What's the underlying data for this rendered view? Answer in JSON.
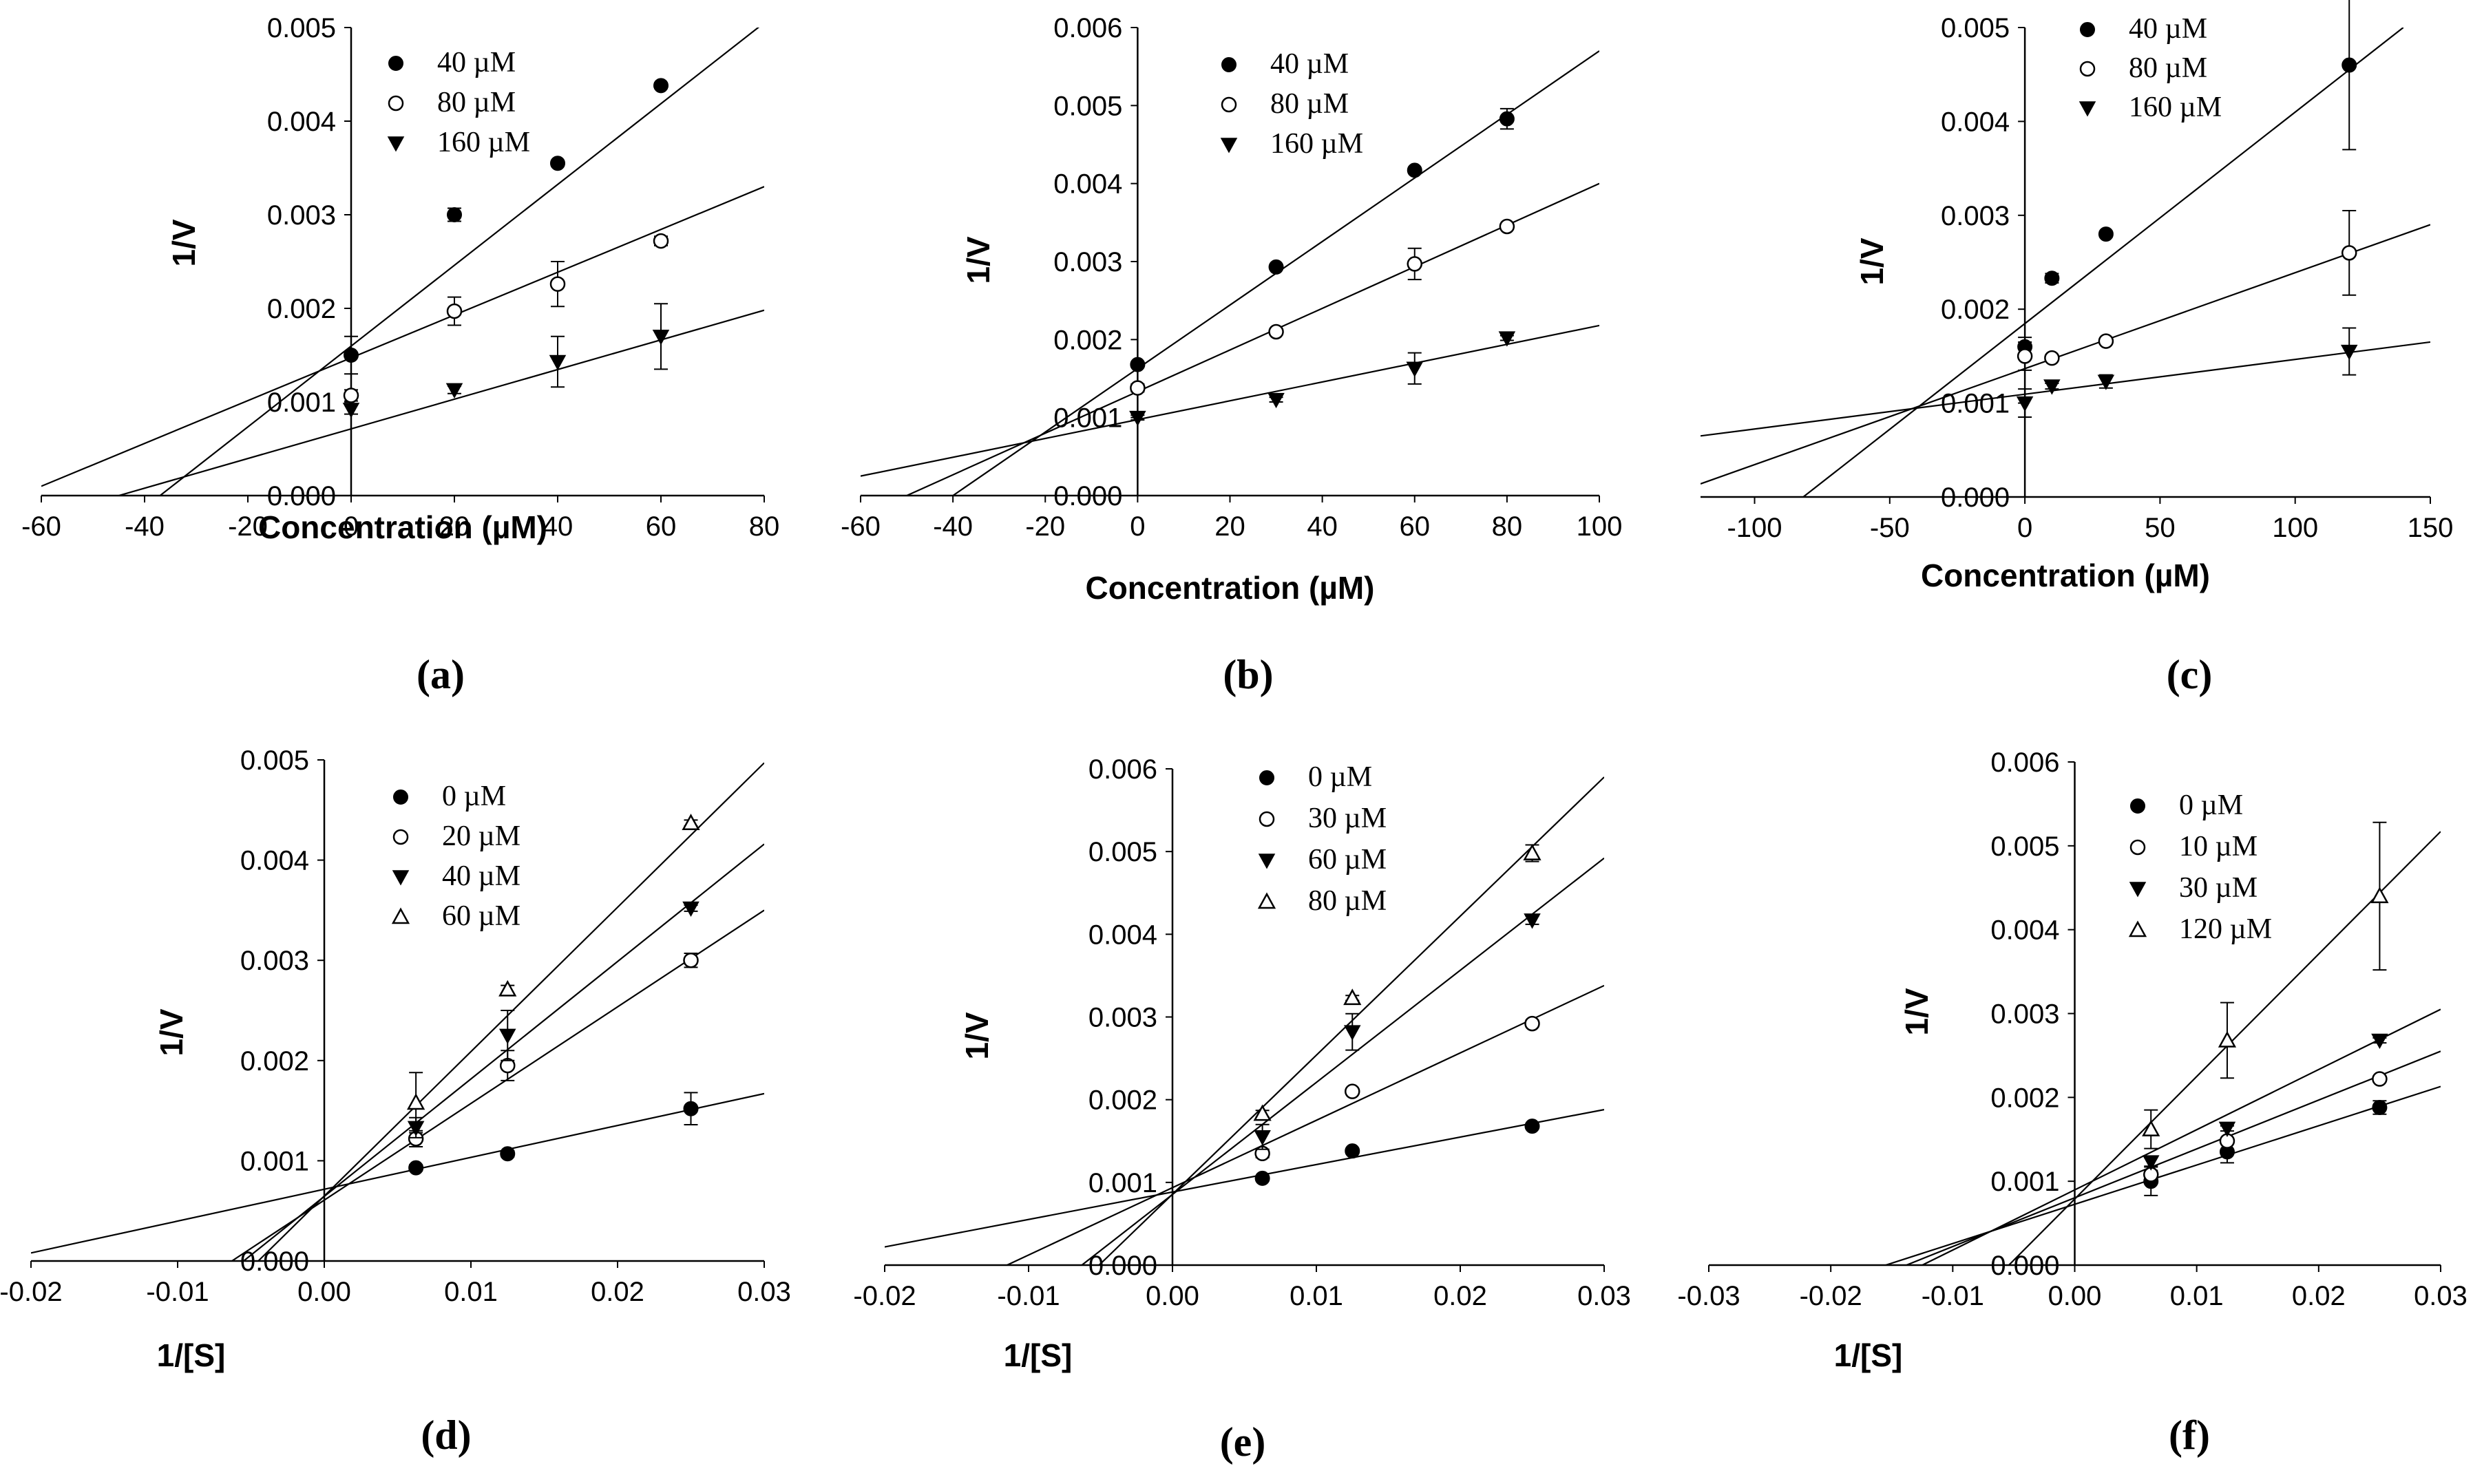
{
  "chart_data": [
    {
      "panel": "(a)",
      "type": "scatter",
      "xlabel": "Concentration (µM)",
      "ylabel": "1/V",
      "xlim": [
        -60,
        80
      ],
      "ylim": [
        0,
        0.005
      ],
      "xticks": [
        -60,
        -40,
        -20,
        0,
        20,
        40,
        60,
        80
      ],
      "xtick_labels": [
        "-60",
        "-40",
        "-20",
        "0",
        "20",
        "40",
        "60",
        "80"
      ],
      "yticks": [
        0,
        0.001,
        0.002,
        0.003,
        0.004,
        0.005
      ],
      "ytick_labels": [
        "0.000",
        "0.001",
        "0.002",
        "0.003",
        "0.004",
        "0.005"
      ],
      "legend": "top-left",
      "series": [
        {
          "name": "40 µM",
          "marker": "filled-circle",
          "x": [
            0,
            20,
            40,
            60
          ],
          "y": [
            0.0015,
            0.003,
            0.00355,
            0.00438
          ],
          "err": [
            0.0002,
            7e-05,
            3e-05,
            3e-05
          ],
          "fit": {
            "x0": -37,
            "y0": 0,
            "x1": 80,
            "y1": 0.00505
          }
        },
        {
          "name": "80 µM",
          "marker": "open-circle",
          "x": [
            0,
            20,
            40,
            60
          ],
          "y": [
            0.00107,
            0.00197,
            0.00226,
            0.00272
          ],
          "err": [
            6e-05,
            0.00015,
            0.00024,
            5e-05
          ],
          "fit": {
            "x0": -60,
            "y0": 0.0001,
            "x1": 80,
            "y1": 0.0033
          }
        },
        {
          "name": "160 µM",
          "marker": "filled-triangle-down",
          "x": [
            0,
            20,
            40,
            60
          ],
          "y": [
            0.00092,
            0.00113,
            0.00143,
            0.0017
          ],
          "err": [
            5e-05,
            4e-05,
            0.00027,
            0.00035
          ],
          "fit": {
            "x0": -45,
            "y0": 0,
            "x1": 80,
            "y1": 0.00198
          }
        }
      ]
    },
    {
      "panel": "(b)",
      "type": "scatter",
      "xlabel": "Concentration (µM)",
      "ylabel": "1/V",
      "xlim": [
        -60,
        100
      ],
      "ylim": [
        0,
        0.006
      ],
      "xticks": [
        -60,
        -40,
        -20,
        0,
        20,
        40,
        60,
        80,
        100
      ],
      "xtick_labels": [
        "-60",
        "-40",
        "-20",
        "0",
        "20",
        "40",
        "60",
        "80",
        "100"
      ],
      "yticks": [
        0,
        0.001,
        0.002,
        0.003,
        0.004,
        0.005,
        0.006
      ],
      "ytick_labels": [
        "0.000",
        "0.001",
        "0.002",
        "0.003",
        "0.004",
        "0.005",
        "0.006"
      ],
      "legend": "top-center",
      "series": [
        {
          "name": "40 µM",
          "marker": "filled-circle",
          "x": [
            0,
            30,
            60,
            80
          ],
          "y": [
            0.00168,
            0.00293,
            0.00417,
            0.00483
          ],
          "err": [
            3e-05,
            3e-05,
            3e-05,
            0.00013
          ],
          "fit": {
            "x0": -40,
            "y0": 0,
            "x1": 100,
            "y1": 0.0057
          }
        },
        {
          "name": "80 µM",
          "marker": "open-circle",
          "x": [
            0,
            30,
            60,
            80
          ],
          "y": [
            0.00138,
            0.0021,
            0.00297,
            0.00345
          ],
          "err": [
            5e-05,
            3e-05,
            0.0002,
            3e-05
          ],
          "fit": {
            "x0": -50,
            "y0": 0,
            "x1": 100,
            "y1": 0.004
          }
        },
        {
          "name": "160 µM",
          "marker": "filled-triangle-down",
          "x": [
            0,
            30,
            60,
            80
          ],
          "y": [
            0.001,
            0.00123,
            0.00163,
            0.00202
          ],
          "err": [
            3e-05,
            3e-05,
            0.0002,
            3e-05
          ],
          "fit": {
            "x0": -60,
            "y0": 0.00025,
            "x1": 100,
            "y1": 0.00218
          }
        }
      ]
    },
    {
      "panel": "(c)",
      "type": "scatter",
      "xlabel": "Concentration (µM)",
      "ylabel": "1/V",
      "xlim": [
        -120,
        150
      ],
      "ylim": [
        0,
        0.005
      ],
      "xticks": [
        -100,
        -50,
        0,
        50,
        100,
        150
      ],
      "xtick_labels": [
        "-100",
        "-50",
        "0",
        "50",
        "100",
        "150"
      ],
      "yticks": [
        0,
        0.001,
        0.002,
        0.003,
        0.004,
        0.005
      ],
      "ytick_labels": [
        "0.000",
        "0.001",
        "0.002",
        "0.003",
        "0.004",
        "0.005"
      ],
      "legend": "top-center",
      "series": [
        {
          "name": "40 µM",
          "marker": "filled-circle",
          "x": [
            0,
            10,
            30,
            120
          ],
          "y": [
            0.0016,
            0.00233,
            0.0028,
            0.0046
          ],
          "err": [
            0.0001,
            5e-05,
            3e-05,
            0.0009
          ],
          "fit": {
            "x0": -82,
            "y0": 0,
            "x1": 140,
            "y1": 0.005
          }
        },
        {
          "name": "80 µM",
          "marker": "open-circle",
          "x": [
            0,
            10,
            30,
            120
          ],
          "y": [
            0.0015,
            0.00148,
            0.00166,
            0.0026
          ],
          "err": [
            0.00015,
            3e-05,
            3e-05,
            0.00045
          ],
          "fit": {
            "x0": -120,
            "y0": 0.00014,
            "x1": 150,
            "y1": 0.0029
          }
        },
        {
          "name": "160 µM",
          "marker": "filled-triangle-down",
          "x": [
            0,
            10,
            30,
            120
          ],
          "y": [
            0.001,
            0.00118,
            0.00123,
            0.00155
          ],
          "err": [
            0.00015,
            3e-05,
            7e-05,
            0.00025
          ],
          "fit": {
            "x0": -120,
            "y0": 0.00065,
            "x1": 150,
            "y1": 0.00165
          }
        }
      ]
    },
    {
      "panel": "(d)",
      "type": "scatter",
      "xlabel": "1/[S]",
      "ylabel": "1/V",
      "xlim": [
        -0.02,
        0.03
      ],
      "ylim": [
        0,
        0.005
      ],
      "xticks": [
        -0.02,
        -0.01,
        0,
        0.01,
        0.02,
        0.03
      ],
      "xtick_labels": [
        "-0.02",
        "-0.01",
        "0.00",
        "0.01",
        "0.02",
        "0.03"
      ],
      "yticks": [
        0,
        0.001,
        0.002,
        0.003,
        0.004,
        0.005
      ],
      "ytick_labels": [
        "0.000",
        "0.001",
        "0.002",
        "0.003",
        "0.004",
        "0.005"
      ],
      "legend": "top-center",
      "series": [
        {
          "name": "0 µM",
          "marker": "filled-circle",
          "x": [
            0.00625,
            0.0125,
            0.025
          ],
          "y": [
            0.00093,
            0.00107,
            0.00152
          ],
          "err": [
            3e-05,
            3e-05,
            0.00016
          ],
          "fit": {
            "x0": -0.02,
            "y0": 8e-05,
            "x1": 0.03,
            "y1": 0.00167
          }
        },
        {
          "name": "20 µM",
          "marker": "open-circle",
          "x": [
            0.00625,
            0.0125,
            0.025
          ],
          "y": [
            0.00122,
            0.00195,
            0.003
          ],
          "err": [
            8e-05,
            0.00015,
            7e-05
          ],
          "fit": {
            "x0": -0.0063,
            "y0": 0,
            "x1": 0.03,
            "y1": 0.0035
          }
        },
        {
          "name": "40 µM",
          "marker": "filled-triangle-down",
          "x": [
            0.00625,
            0.0125,
            0.025
          ],
          "y": [
            0.00133,
            0.00225,
            0.00352
          ],
          "err": [
            0.0001,
            0.00025,
            3e-05
          ],
          "fit": {
            "x0": -0.0055,
            "y0": 0,
            "x1": 0.03,
            "y1": 0.00416
          }
        },
        {
          "name": "60 µM",
          "marker": "open-triangle-up",
          "x": [
            0.00625,
            0.0125,
            0.025
          ],
          "y": [
            0.00158,
            0.00271,
            0.00437
          ],
          "err": [
            0.0003,
            4e-05,
            3e-05
          ],
          "fit": {
            "x0": -0.0045,
            "y0": 0,
            "x1": 0.03,
            "y1": 0.00497
          }
        }
      ]
    },
    {
      "panel": "(e)",
      "type": "scatter",
      "xlabel": "1/[S]",
      "ylabel": "1/V",
      "xlim": [
        -0.02,
        0.03
      ],
      "ylim": [
        0,
        0.006
      ],
      "xticks": [
        -0.02,
        -0.01,
        0,
        0.01,
        0.02,
        0.03
      ],
      "xtick_labels": [
        "-0.02",
        "-0.01",
        "0.00",
        "0.01",
        "0.02",
        "0.03"
      ],
      "yticks": [
        0,
        0.001,
        0.002,
        0.003,
        0.004,
        0.005,
        0.006
      ],
      "ytick_labels": [
        "0.000",
        "0.001",
        "0.002",
        "0.003",
        "0.004",
        "0.005",
        "0.006"
      ],
      "legend": "top-left",
      "series": [
        {
          "name": "0 µM",
          "marker": "filled-circle",
          "x": [
            0.00625,
            0.0125,
            0.025
          ],
          "y": [
            0.00105,
            0.00138,
            0.00168
          ],
          "err": [
            3e-05,
            3e-05,
            3e-05
          ],
          "fit": {
            "x0": -0.02,
            "y0": 0.00022,
            "x1": 0.03,
            "y1": 0.00188
          }
        },
        {
          "name": "30 µM",
          "marker": "open-circle",
          "x": [
            0.00625,
            0.0125,
            0.025
          ],
          "y": [
            0.00135,
            0.0021,
            0.00292
          ],
          "err": [
            5e-05,
            3e-05,
            4e-05
          ],
          "fit": {
            "x0": -0.0115,
            "y0": 0,
            "x1": 0.03,
            "y1": 0.00338
          }
        },
        {
          "name": "60 µM",
          "marker": "filled-triangle-down",
          "x": [
            0.00625,
            0.0125,
            0.025
          ],
          "y": [
            0.00155,
            0.00282,
            0.00417
          ],
          "err": [
            0.00015,
            0.00022,
            5e-05
          ],
          "fit": {
            "x0": -0.0063,
            "y0": 0,
            "x1": 0.03,
            "y1": 0.00492
          }
        },
        {
          "name": "80 µM",
          "marker": "open-triangle-up",
          "x": [
            0.00625,
            0.0125,
            0.025
          ],
          "y": [
            0.00183,
            0.00323,
            0.00498
          ],
          "err": [
            4e-05,
            3e-05,
            0.0001
          ],
          "fit": {
            "x0": -0.0051,
            "y0": 0,
            "x1": 0.03,
            "y1": 0.0059
          }
        }
      ]
    },
    {
      "panel": "(f)",
      "type": "scatter",
      "xlabel": "1/[S]",
      "ylabel": "1/V",
      "xlim": [
        -0.03,
        0.03
      ],
      "ylim": [
        0,
        0.006
      ],
      "xticks": [
        -0.03,
        -0.02,
        -0.01,
        0,
        0.01,
        0.02,
        0.03
      ],
      "xtick_labels": [
        "-0.03",
        "-0.02",
        "-0.01",
        "0.00",
        "0.01",
        "0.02",
        "0.03"
      ],
      "yticks": [
        0,
        0.001,
        0.002,
        0.003,
        0.004,
        0.005,
        0.006
      ],
      "ytick_labels": [
        "0.000",
        "0.001",
        "0.002",
        "0.003",
        "0.004",
        "0.005",
        "0.006"
      ],
      "legend": "top-left",
      "series": [
        {
          "name": "0 µM",
          "marker": "filled-circle",
          "x": [
            0.00625,
            0.0125,
            0.025
          ],
          "y": [
            0.001,
            0.00135,
            0.00188
          ],
          "err": [
            0.00017,
            0.00013,
            8e-05
          ],
          "fit": {
            "x0": -0.0155,
            "y0": 0,
            "x1": 0.03,
            "y1": 0.00213
          }
        },
        {
          "name": "10 µM",
          "marker": "open-circle",
          "x": [
            0.00625,
            0.0125,
            0.025
          ],
          "y": [
            0.00108,
            0.00148,
            0.00222
          ],
          "err": [
            5e-05,
            3e-05,
            3e-05
          ],
          "fit": {
            "x0": -0.0138,
            "y0": 0,
            "x1": 0.03,
            "y1": 0.00255
          }
        },
        {
          "name": "30 µM",
          "marker": "filled-triangle-down",
          "x": [
            0.00625,
            0.0125,
            0.025
          ],
          "y": [
            0.00123,
            0.00163,
            0.00268
          ],
          "err": [
            5e-05,
            3e-05,
            3e-05
          ],
          "fit": {
            "x0": -0.0125,
            "y0": 0,
            "x1": 0.03,
            "y1": 0.00305
          }
        },
        {
          "name": "120 µM",
          "marker": "open-triangle-up",
          "x": [
            0.00625,
            0.0125,
            0.025
          ],
          "y": [
            0.00162,
            0.00268,
            0.0044
          ],
          "err": [
            0.00023,
            0.00045,
            0.00088
          ],
          "fit": {
            "x0": -0.0054,
            "y0": 0,
            "x1": 0.03,
            "y1": 0.00517
          }
        }
      ]
    }
  ]
}
